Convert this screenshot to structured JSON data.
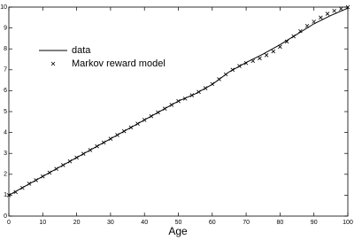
{
  "chart_data": {
    "type": "line",
    "xlabel": "Age",
    "xlim": [
      0,
      100
    ],
    "ylim": [
      0,
      10
    ],
    "xticks": [
      0,
      10,
      20,
      30,
      40,
      50,
      60,
      70,
      80,
      90,
      100
    ],
    "yticks": [
      0,
      1,
      2,
      3,
      4,
      5,
      6,
      7,
      8,
      9,
      10
    ],
    "legend": "upper left",
    "series": [
      {
        "name": "data",
        "type": "line",
        "color": "#000000",
        "x": [
          0,
          5,
          10,
          15,
          20,
          25,
          30,
          35,
          40,
          45,
          50,
          55,
          60,
          65,
          70,
          75,
          80,
          85,
          90,
          95,
          100
        ],
        "values": [
          1.0,
          1.45,
          1.9,
          2.35,
          2.8,
          3.25,
          3.7,
          4.15,
          4.6,
          5.05,
          5.5,
          5.85,
          6.3,
          6.9,
          7.35,
          7.75,
          8.2,
          8.7,
          9.2,
          9.6,
          9.95
        ]
      },
      {
        "name": "Markov reward model",
        "type": "scatter",
        "marker": "x",
        "color": "#000000",
        "x": [
          0,
          2,
          4,
          6,
          8,
          10,
          12,
          14,
          16,
          18,
          20,
          22,
          24,
          26,
          28,
          30,
          32,
          34,
          36,
          38,
          40,
          42,
          44,
          46,
          48,
          50,
          52,
          54,
          56,
          58,
          60,
          62,
          64,
          66,
          68,
          70,
          72,
          74,
          76,
          78,
          80,
          82,
          84,
          86,
          88,
          90,
          92,
          94,
          96,
          98,
          100
        ],
        "values": [
          1.0,
          1.15,
          1.35,
          1.55,
          1.72,
          1.9,
          2.08,
          2.26,
          2.44,
          2.62,
          2.8,
          2.98,
          3.16,
          3.34,
          3.52,
          3.7,
          3.88,
          4.06,
          4.24,
          4.42,
          4.6,
          4.78,
          4.96,
          5.14,
          5.32,
          5.5,
          5.62,
          5.78,
          5.94,
          6.12,
          6.32,
          6.55,
          6.78,
          7.0,
          7.18,
          7.32,
          7.42,
          7.55,
          7.7,
          7.88,
          8.1,
          8.35,
          8.6,
          8.85,
          9.1,
          9.3,
          9.5,
          9.68,
          9.82,
          9.92,
          10.0
        ]
      }
    ]
  }
}
